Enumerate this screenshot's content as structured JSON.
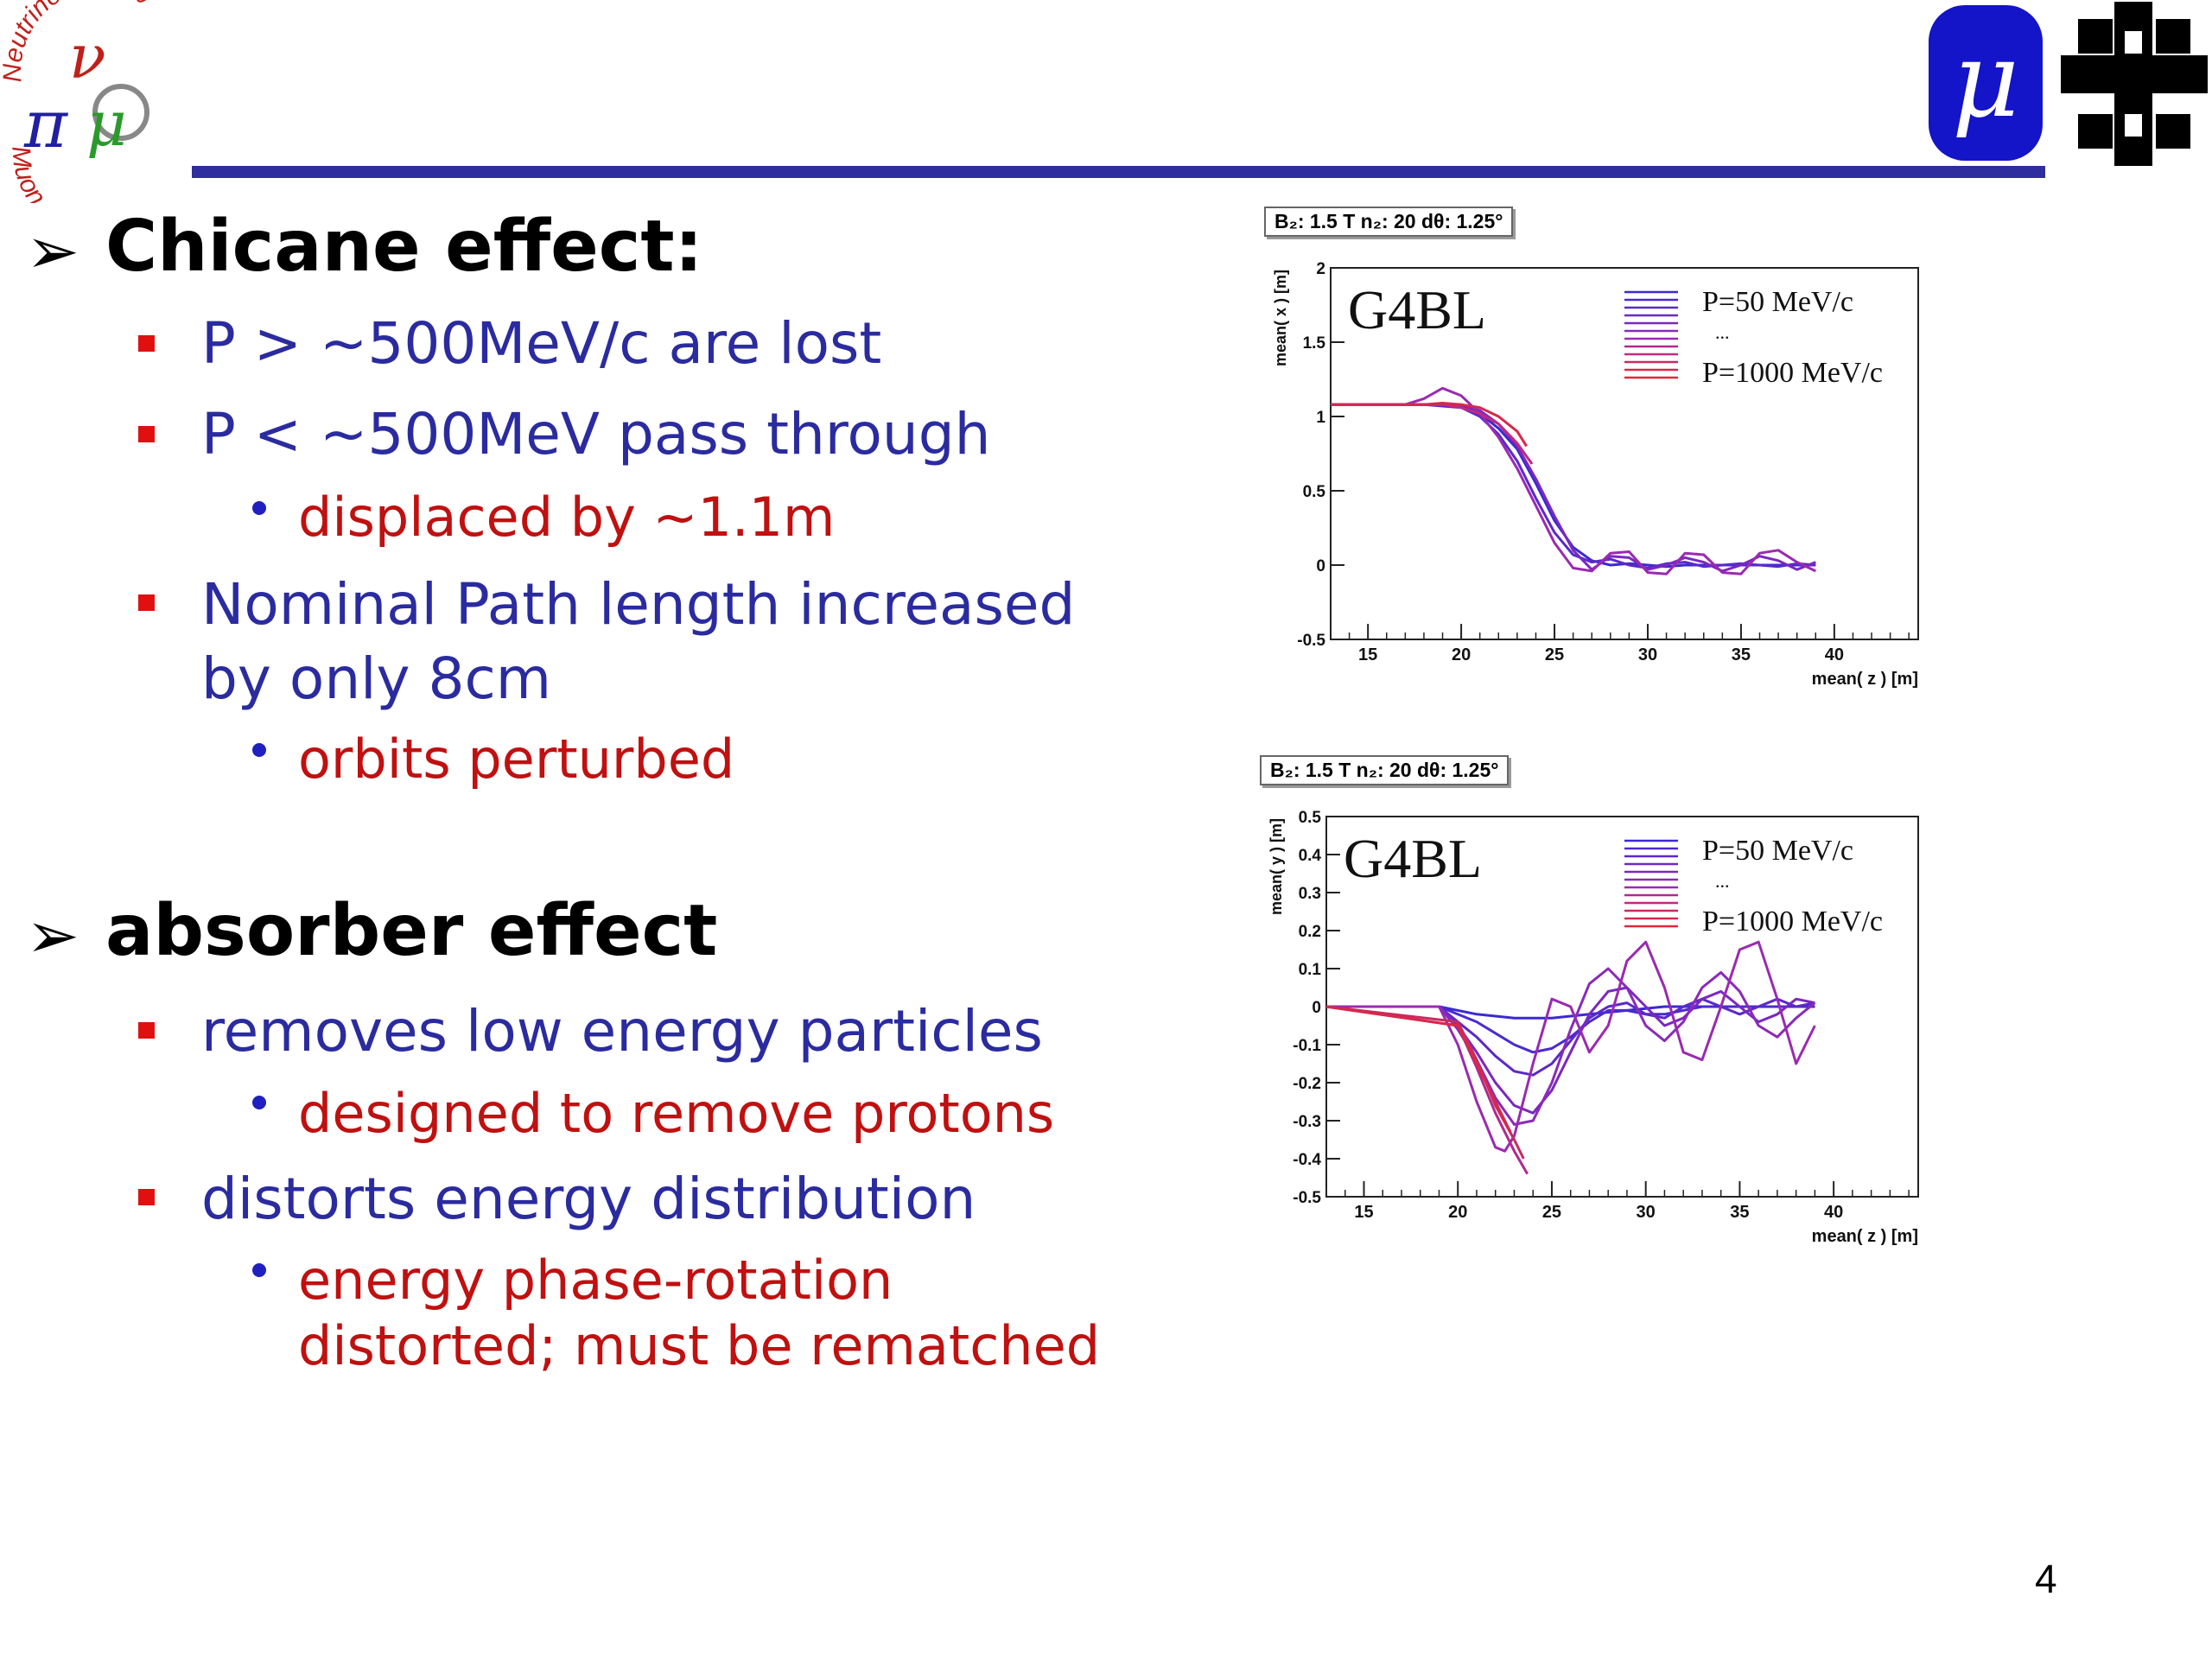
{
  "slide": {
    "page_number": "4",
    "sections": [
      {
        "heading": "Chicane effect:",
        "items": [
          {
            "text": "P > ~500MeV/c  are lost",
            "sub": []
          },
          {
            "text": "P < ~500MeV pass through",
            "sub": [
              "displaced by ~1.1m"
            ]
          },
          {
            "text": "Nominal Path length increased",
            "text2": "by only 8cm",
            "sub": [
              "orbits perturbed"
            ]
          }
        ]
      },
      {
        "heading": "absorber effect",
        "items": [
          {
            "text": "removes low energy particles",
            "sub": [
              "designed to remove protons"
            ]
          },
          {
            "text": "distorts energy distribution",
            "sub": [
              "energy phase-rotation",
              "distorted; must be rematched"
            ]
          }
        ]
      }
    ]
  },
  "logos": {
    "nf_top": "Neutrino Factory",
    "nf_bottom": "Muon Collider",
    "mu_glyph": "μ"
  },
  "colors": {
    "header_rule": "#2e2e9e",
    "heading": "#000000",
    "level2": "#2b2ba0",
    "level3": "#c01010",
    "bullet_square": "#e01010",
    "bullet_dot": "#2020c0"
  },
  "chart_data": [
    {
      "type": "line",
      "stats_box": "B₂: 1.5 T n₂: 20 dθ: 1.25°",
      "title": "G4BL",
      "xlabel": "mean( z ) [m]",
      "ylabel": "mean( x ) [m]",
      "xlim": [
        13,
        44.5
      ],
      "ylim": [
        -0.5,
        2
      ],
      "xticks": [
        "15",
        "20",
        "25",
        "30",
        "35",
        "40"
      ],
      "yticks": [
        "-0.5",
        "0",
        "0.5",
        "1",
        "1.5",
        "2"
      ],
      "legend": [
        "P=50 MeV/c",
        "...",
        "P=1000 MeV/c"
      ],
      "series": [
        {
          "color": "#3a2ad0",
          "x": [
            13,
            18,
            20,
            21,
            22,
            23,
            24,
            25,
            26,
            27,
            28,
            29,
            30,
            31,
            32,
            33,
            34,
            35,
            36,
            37,
            38,
            39
          ],
          "y": [
            1.08,
            1.08,
            1.07,
            1.02,
            0.92,
            0.78,
            0.55,
            0.3,
            0.12,
            0.03,
            0.0,
            0.01,
            0.0,
            -0.01,
            0.0,
            0.0,
            0.0,
            0.0,
            0.0,
            0.0,
            0.0,
            0.0
          ]
        },
        {
          "color": "#5a2ac8",
          "x": [
            13,
            18,
            20,
            21,
            22,
            23,
            24,
            25,
            26,
            27,
            28,
            29,
            30,
            31,
            32,
            33,
            34,
            35,
            36,
            37,
            38,
            39
          ],
          "y": [
            1.08,
            1.08,
            1.06,
            1.0,
            0.88,
            0.7,
            0.45,
            0.22,
            0.07,
            0.02,
            0.04,
            0.0,
            -0.02,
            0.01,
            0.02,
            -0.01,
            0.0,
            0.01,
            0.0,
            -0.01,
            0.01,
            0.0
          ]
        },
        {
          "color": "#7a28c0",
          "x": [
            13,
            18,
            20,
            21,
            22,
            23,
            24,
            25,
            26,
            27,
            28,
            29,
            30,
            31,
            32,
            33,
            34,
            35,
            36,
            37,
            38,
            39
          ],
          "y": [
            1.08,
            1.08,
            1.08,
            1.04,
            0.95,
            0.8,
            0.58,
            0.33,
            0.1,
            -0.03,
            0.06,
            0.05,
            -0.03,
            0.0,
            0.05,
            0.02,
            -0.04,
            0.0,
            0.06,
            0.03,
            -0.03,
            0.02
          ]
        },
        {
          "color": "#9a2ab0",
          "x": [
            13,
            17,
            18,
            19,
            20,
            21,
            22,
            23,
            24,
            25,
            26,
            27,
            28,
            29,
            30,
            31,
            32,
            33,
            34,
            35,
            36,
            37,
            38,
            39
          ],
          "y": [
            1.08,
            1.08,
            1.12,
            1.19,
            1.14,
            1.02,
            0.86,
            0.65,
            0.4,
            0.15,
            -0.02,
            -0.04,
            0.08,
            0.09,
            -0.05,
            -0.06,
            0.08,
            0.07,
            -0.05,
            -0.06,
            0.08,
            0.1,
            0.02,
            -0.04
          ]
        },
        {
          "color": "#c02a80",
          "x": [
            13,
            18,
            19,
            20,
            21,
            22,
            23,
            23.8
          ],
          "y": [
            1.08,
            1.08,
            1.08,
            1.06,
            1.02,
            0.95,
            0.82,
            0.68
          ]
        },
        {
          "color": "#d8284a",
          "x": [
            13,
            18,
            19,
            20,
            21,
            22,
            23,
            23.5
          ],
          "y": [
            1.08,
            1.08,
            1.09,
            1.08,
            1.06,
            1.0,
            0.9,
            0.8
          ]
        }
      ]
    },
    {
      "type": "line",
      "stats_box": "B₂: 1.5 T n₂: 20 dθ: 1.25°",
      "title": "G4BL",
      "xlabel": "mean( z ) [m]",
      "ylabel": "mean( y ) [m]",
      "xlim": [
        13,
        44.5
      ],
      "ylim": [
        -0.5,
        0.5
      ],
      "xticks": [
        "15",
        "20",
        "25",
        "30",
        "35",
        "40"
      ],
      "yticks": [
        "-0.5",
        "-0.4",
        "-0.3",
        "-0.2",
        "-0.1",
        "0",
        "0.1",
        "0.2",
        "0.3",
        "0.4",
        "0.5"
      ],
      "legend": [
        "P=50 MeV/c",
        "...",
        "P=1000 MeV/c"
      ],
      "series": [
        {
          "color": "#3a2ad0",
          "x": [
            13,
            19,
            21,
            23,
            25,
            27,
            29,
            31,
            33,
            35,
            37,
            39
          ],
          "y": [
            0,
            0,
            -0.02,
            -0.03,
            -0.03,
            -0.02,
            -0.01,
            0,
            0,
            0,
            0,
            0
          ]
        },
        {
          "color": "#4a2ad0",
          "x": [
            13,
            19,
            21,
            22,
            23,
            24,
            25,
            26,
            27,
            28,
            29,
            30,
            31,
            33,
            35,
            37,
            39
          ],
          "y": [
            0,
            0,
            -0.04,
            -0.07,
            -0.1,
            -0.12,
            -0.11,
            -0.08,
            -0.04,
            -0.01,
            -0.01,
            -0.02,
            -0.02,
            0,
            0,
            0,
            0
          ]
        },
        {
          "color": "#5a2ac8",
          "x": [
            13,
            19,
            20,
            21,
            22,
            23,
            24,
            25,
            26,
            27,
            28,
            29,
            30,
            31,
            32,
            33,
            34,
            35,
            36,
            37,
            38,
            39
          ],
          "y": [
            0,
            0,
            -0.04,
            -0.08,
            -0.13,
            -0.17,
            -0.18,
            -0.15,
            -0.09,
            -0.03,
            0.0,
            0.01,
            -0.02,
            -0.03,
            0.0,
            0.02,
            0.0,
            -0.02,
            0.0,
            0.02,
            0.0,
            0.01
          ]
        },
        {
          "color": "#7a28c0",
          "x": [
            13,
            19,
            20,
            21,
            22,
            23,
            24,
            25,
            26,
            27,
            28,
            29,
            30,
            31,
            32,
            33,
            34,
            35,
            36,
            37,
            38,
            39
          ],
          "y": [
            0,
            0,
            -0.05,
            -0.12,
            -0.2,
            -0.26,
            -0.28,
            -0.22,
            -0.12,
            -0.02,
            0.04,
            0.05,
            0.0,
            -0.05,
            -0.03,
            0.02,
            0.04,
            0.0,
            -0.04,
            -0.02,
            0.02,
            0.01
          ]
        },
        {
          "color": "#8a2ab8",
          "x": [
            13,
            19,
            20,
            21,
            22,
            23,
            24,
            25,
            26,
            27,
            28,
            29,
            30,
            31,
            32,
            33,
            34,
            35,
            36,
            37,
            38,
            39
          ],
          "y": [
            0,
            0,
            -0.06,
            -0.14,
            -0.24,
            -0.31,
            -0.3,
            -0.2,
            -0.06,
            0.06,
            0.1,
            0.05,
            -0.05,
            -0.09,
            -0.04,
            0.05,
            0.09,
            0.04,
            -0.05,
            -0.08,
            -0.03,
            0.01
          ]
        },
        {
          "color": "#9a2ab0",
          "x": [
            13,
            19,
            20,
            21,
            22,
            22.5,
            23,
            24,
            25,
            26,
            27,
            28,
            29,
            30,
            31,
            32,
            33,
            34,
            35,
            36,
            37,
            38,
            39
          ],
          "y": [
            0,
            0,
            -0.1,
            -0.25,
            -0.37,
            -0.38,
            -0.34,
            -0.15,
            0.02,
            0.0,
            -0.12,
            -0.05,
            0.12,
            0.17,
            0.05,
            -0.12,
            -0.14,
            0.0,
            0.15,
            0.17,
            0.02,
            -0.15,
            -0.05
          ]
        },
        {
          "color": "#b02a90",
          "x": [
            13,
            20,
            21,
            22,
            23,
            23.7
          ],
          "y": [
            0,
            -0.05,
            -0.16,
            -0.28,
            -0.38,
            -0.44
          ]
        },
        {
          "color": "#c82a60",
          "x": [
            13,
            20,
            21,
            22,
            23,
            23.5
          ],
          "y": [
            0,
            -0.04,
            -0.14,
            -0.26,
            -0.35,
            -0.4
          ]
        },
        {
          "color": "#d8284a",
          "x": [
            13,
            20,
            21,
            22,
            22.8
          ],
          "y": [
            0,
            -0.05,
            -0.15,
            -0.25,
            -0.33
          ]
        }
      ]
    }
  ]
}
